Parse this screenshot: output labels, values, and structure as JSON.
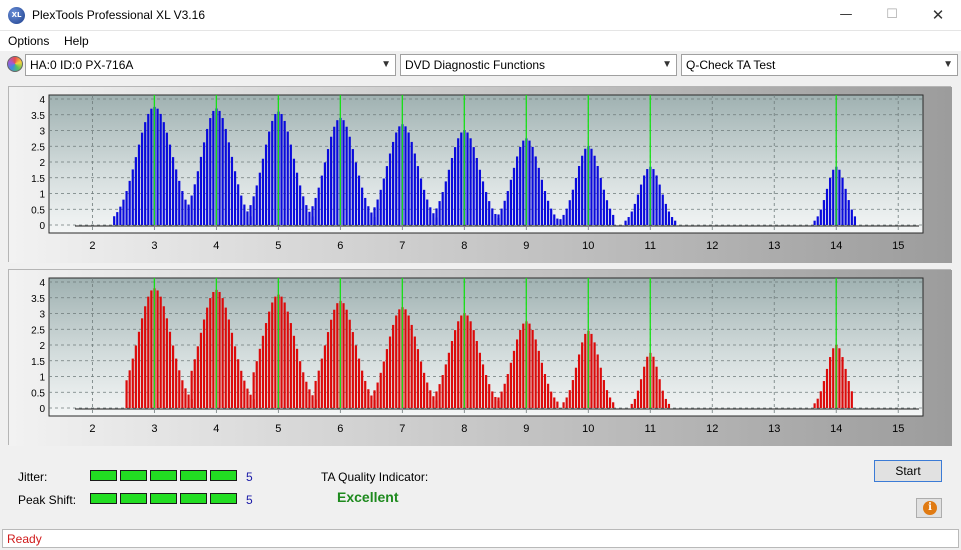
{
  "window": {
    "title": "PlexTools Professional XL V3.16",
    "icon_text": "XL",
    "minimize_icon": "minimize-icon",
    "maximize_icon": "maximize-icon",
    "close_icon": "close-icon"
  },
  "menu": [
    {
      "label": "Options"
    },
    {
      "label": "Help"
    }
  ],
  "toolbar": {
    "drive": "HA:0 ID:0  PX-716A",
    "function": "DVD Diagnostic Functions",
    "test": "Q-Check TA Test"
  },
  "chart_data": [
    {
      "type": "bar",
      "name": "upper",
      "color": "#0a0adc",
      "xlim": [
        1.3,
        15.4
      ],
      "ylim": [
        0,
        4
      ],
      "x_ticks": [
        2,
        3,
        4,
        5,
        6,
        7,
        8,
        9,
        10,
        11,
        12,
        13,
        14,
        15
      ],
      "y_ticks": [
        0,
        0.5,
        1,
        1.5,
        2,
        2.5,
        3,
        3.5,
        4
      ],
      "y_tick_labels": [
        "0",
        "0.5",
        "1",
        "1.5",
        "2",
        "2.5",
        "3",
        "3.5",
        "4"
      ],
      "marker_lines": [
        3,
        4,
        5,
        6,
        7,
        8,
        9,
        10,
        11,
        14
      ],
      "peaks": [
        {
          "center": 3.0,
          "height": 3.75,
          "from": 2.35,
          "to": 3.55
        },
        {
          "center": 4.0,
          "height": 3.7,
          "from": 3.55,
          "to": 4.55
        },
        {
          "center": 5.0,
          "height": 3.6,
          "from": 4.55,
          "to": 5.55
        },
        {
          "center": 6.0,
          "height": 3.4,
          "from": 5.55,
          "to": 6.55
        },
        {
          "center": 7.0,
          "height": 3.2,
          "from": 6.55,
          "to": 7.55
        },
        {
          "center": 8.0,
          "height": 3.0,
          "from": 7.55,
          "to": 8.55
        },
        {
          "center": 9.0,
          "height": 2.75,
          "from": 8.55,
          "to": 9.5
        },
        {
          "center": 10.0,
          "height": 2.5,
          "from": 9.55,
          "to": 10.4
        },
        {
          "center": 11.0,
          "height": 1.85,
          "from": 10.6,
          "to": 11.4
        },
        {
          "center": 14.0,
          "height": 1.85,
          "from": 13.65,
          "to": 14.3
        }
      ]
    },
    {
      "type": "bar",
      "name": "lower",
      "color": "#dc0a0a",
      "xlim": [
        1.3,
        15.4
      ],
      "ylim": [
        0,
        4
      ],
      "x_ticks": [
        2,
        3,
        4,
        5,
        6,
        7,
        8,
        9,
        10,
        11,
        12,
        13,
        14,
        15
      ],
      "y_ticks": [
        0,
        0.5,
        1,
        1.5,
        2,
        2.5,
        3,
        3.5,
        4
      ],
      "y_tick_labels": [
        "0",
        "0.5",
        "1",
        "1.5",
        "2",
        "2.5",
        "3",
        "3.5",
        "4"
      ],
      "marker_lines": [
        3,
        4,
        5,
        6,
        7,
        8,
        9,
        10,
        11,
        14
      ],
      "peaks": [
        {
          "center": 3.0,
          "height": 3.8,
          "from": 2.55,
          "to": 3.6
        },
        {
          "center": 4.0,
          "height": 3.75,
          "from": 3.6,
          "to": 4.6
        },
        {
          "center": 5.0,
          "height": 3.6,
          "from": 4.6,
          "to": 5.6
        },
        {
          "center": 6.0,
          "height": 3.4,
          "from": 5.6,
          "to": 6.55
        },
        {
          "center": 7.0,
          "height": 3.2,
          "from": 6.55,
          "to": 7.55
        },
        {
          "center": 8.0,
          "height": 3.0,
          "from": 7.55,
          "to": 8.55
        },
        {
          "center": 9.0,
          "height": 2.75,
          "from": 8.55,
          "to": 9.5
        },
        {
          "center": 10.0,
          "height": 2.45,
          "from": 9.6,
          "to": 10.4
        },
        {
          "center": 11.0,
          "height": 1.75,
          "from": 10.7,
          "to": 11.3
        },
        {
          "center": 14.0,
          "height": 2.0,
          "from": 13.65,
          "to": 14.25
        }
      ]
    }
  ],
  "results": {
    "jitter_label": "Jitter:",
    "jitter_value": "5",
    "peak_label": "Peak Shift:",
    "peak_value": "5",
    "ta_label": "TA Quality Indicator:",
    "ta_value": "Excellent"
  },
  "buttons": {
    "start": "Start",
    "info_icon": "info-icon"
  },
  "status": "Ready"
}
